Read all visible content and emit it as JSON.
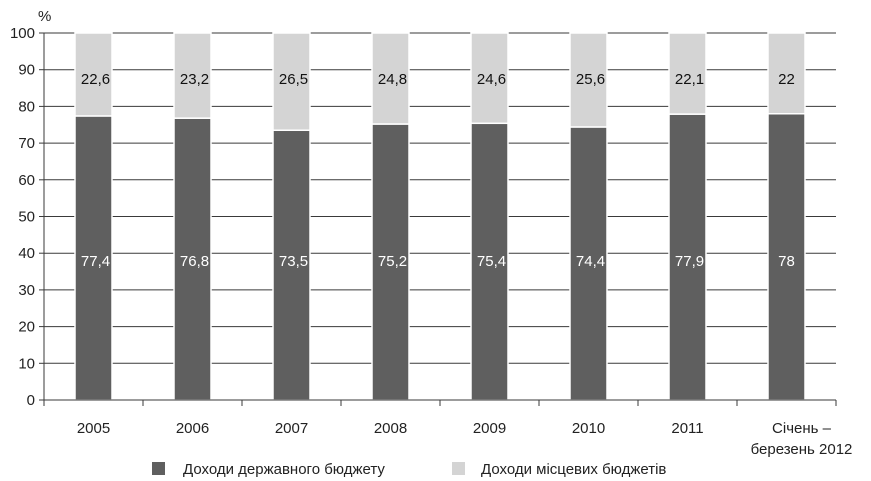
{
  "chart_data": {
    "type": "bar",
    "stacked": true,
    "y_axis_label": "%",
    "ylim": [
      0,
      100
    ],
    "yticks": [
      0,
      10,
      20,
      30,
      40,
      50,
      60,
      70,
      80,
      90,
      100
    ],
    "grid": true,
    "legend_position": "bottom",
    "categories": [
      [
        "2005"
      ],
      [
        "2006"
      ],
      [
        "2007"
      ],
      [
        "2008"
      ],
      [
        "2009"
      ],
      [
        "2010"
      ],
      [
        "2011"
      ],
      [
        "Січень –",
        "березень 2012"
      ]
    ],
    "series": [
      {
        "name": "Доходи державного бюджету",
        "color": "#5f5f5f",
        "label_color": "#ffffff",
        "values": [
          77.4,
          76.8,
          73.5,
          75.2,
          75.4,
          74.4,
          77.9,
          78
        ],
        "labels": [
          "77,4",
          "76,8",
          "73,5",
          "75,2",
          "75,4",
          "74,4",
          "77,9",
          "78"
        ]
      },
      {
        "name": "Доходи місцевих бюджетів",
        "color": "#d4d4d4",
        "label_color": "#111111",
        "values": [
          22.6,
          23.2,
          26.5,
          24.8,
          24.6,
          25.6,
          22.1,
          22
        ],
        "labels": [
          "22,6",
          "23,2",
          "26,5",
          "24,8",
          "24,6",
          "25,6",
          "22,1",
          "22"
        ]
      }
    ]
  }
}
